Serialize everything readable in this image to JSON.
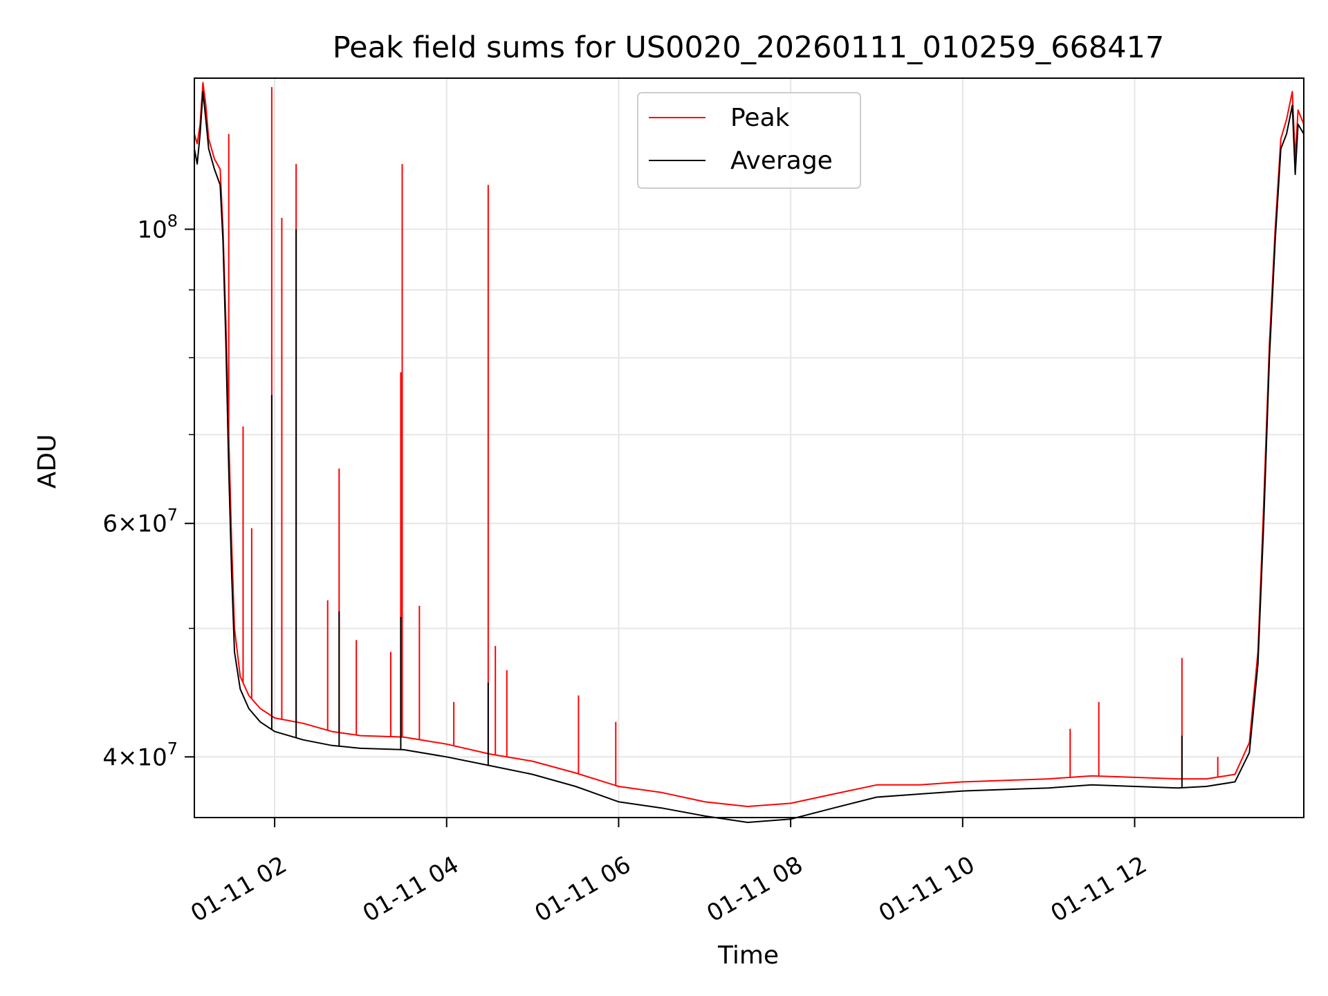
{
  "chart_data": {
    "type": "line",
    "title": "Peak field sums for US0020_20260111_010259_668417",
    "xlabel": "Time",
    "ylabel": "ADU",
    "yscale": "log",
    "grid": true,
    "legend_position": "top-center",
    "x_range": [
      "2026-01-11 01:04",
      "2026-01-11 13:58"
    ],
    "y_range": [
      36000000,
      130000000
    ],
    "x_ticks": [
      {
        "t": "2026-01-11 02:00",
        "label": "01-11 02"
      },
      {
        "t": "2026-01-11 04:00",
        "label": "01-11 04"
      },
      {
        "t": "2026-01-11 06:00",
        "label": "01-11 06"
      },
      {
        "t": "2026-01-11 08:00",
        "label": "01-11 08"
      },
      {
        "t": "2026-01-11 10:00",
        "label": "01-11 10"
      },
      {
        "t": "2026-01-11 12:00",
        "label": "01-11 12"
      }
    ],
    "y_major_ticks": [
      {
        "value": 40000000,
        "base": "4",
        "exp": "7",
        "times": true
      },
      {
        "value": 60000000,
        "base": "6",
        "exp": "7",
        "times": true
      },
      {
        "value": 100000000,
        "base": "10",
        "exp": "8",
        "times": false
      }
    ],
    "y_minor_ticks": [
      50000000,
      70000000,
      80000000,
      90000000
    ],
    "series": [
      {
        "name": "Peak",
        "color": "#ff0000",
        "points": [
          [
            "2026-01-11 01:04",
            118000000
          ],
          [
            "2026-01-11 01:06",
            116000000
          ],
          [
            "2026-01-11 01:08",
            120000000
          ],
          [
            "2026-01-11 01:10",
            129000000
          ],
          [
            "2026-01-11 01:12",
            124000000
          ],
          [
            "2026-01-11 01:14",
            117000000
          ],
          [
            "2026-01-11 01:18",
            113000000
          ],
          [
            "2026-01-11 01:22",
            111000000
          ],
          [
            "2026-01-11 01:24",
            100000000
          ],
          [
            "2026-01-11 01:26",
            85000000
          ],
          [
            "2026-01-11 01:28",
            70000000
          ],
          [
            "2026-01-11 01:30",
            58000000
          ],
          [
            "2026-01-11 01:32",
            50000000
          ],
          [
            "2026-01-11 01:36",
            46000000
          ],
          [
            "2026-01-11 01:42",
            44500000
          ],
          [
            "2026-01-11 01:50",
            43500000
          ],
          [
            "2026-01-11 02:00",
            42800000
          ],
          [
            "2026-01-11 02:20",
            42400000
          ],
          [
            "2026-01-11 02:40",
            41800000
          ],
          [
            "2026-01-11 03:00",
            41500000
          ],
          [
            "2026-01-11 03:30",
            41400000
          ],
          [
            "2026-01-11 04:00",
            40900000
          ],
          [
            "2026-01-11 04:30",
            40200000
          ],
          [
            "2026-01-11 05:00",
            39700000
          ],
          [
            "2026-01-11 05:30",
            38900000
          ],
          [
            "2026-01-11 06:00",
            38000000
          ],
          [
            "2026-01-11 06:30",
            37600000
          ],
          [
            "2026-01-11 07:00",
            37000000
          ],
          [
            "2026-01-11 07:30",
            36700000
          ],
          [
            "2026-01-11 08:00",
            36900000
          ],
          [
            "2026-01-11 08:30",
            37500000
          ],
          [
            "2026-01-11 09:00",
            38100000
          ],
          [
            "2026-01-11 09:30",
            38100000
          ],
          [
            "2026-01-11 10:00",
            38300000
          ],
          [
            "2026-01-11 10:30",
            38400000
          ],
          [
            "2026-01-11 11:00",
            38500000
          ],
          [
            "2026-01-11 11:30",
            38700000
          ],
          [
            "2026-01-11 12:00",
            38600000
          ],
          [
            "2026-01-11 12:30",
            38500000
          ],
          [
            "2026-01-11 12:50",
            38500000
          ],
          [
            "2026-01-11 13:10",
            38800000
          ],
          [
            "2026-01-11 13:20",
            41000000
          ],
          [
            "2026-01-11 13:26",
            48000000
          ],
          [
            "2026-01-11 13:30",
            62000000
          ],
          [
            "2026-01-11 13:34",
            82000000
          ],
          [
            "2026-01-11 13:38",
            100000000
          ],
          [
            "2026-01-11 13:42",
            117000000
          ],
          [
            "2026-01-11 13:46",
            121000000
          ],
          [
            "2026-01-11 13:50",
            127000000
          ],
          [
            "2026-01-11 13:52",
            113000000
          ],
          [
            "2026-01-11 13:54",
            123000000
          ],
          [
            "2026-01-11 13:58",
            120000000
          ]
        ],
        "spikes": [
          [
            "2026-01-11 01:28",
            118000000
          ],
          [
            "2026-01-11 01:38",
            71000000
          ],
          [
            "2026-01-11 01:44",
            59500000
          ],
          [
            "2026-01-11 01:58",
            128000000
          ],
          [
            "2026-01-11 02:05",
            102000000
          ],
          [
            "2026-01-11 02:15",
            112000000
          ],
          [
            "2026-01-11 02:37",
            52500000
          ],
          [
            "2026-01-11 02:45",
            66000000
          ],
          [
            "2026-01-11 02:57",
            49000000
          ],
          [
            "2026-01-11 03:21",
            48000000
          ],
          [
            "2026-01-11 03:28",
            78000000
          ],
          [
            "2026-01-11 03:29",
            112000000
          ],
          [
            "2026-01-11 03:41",
            52000000
          ],
          [
            "2026-01-11 04:05",
            44000000
          ],
          [
            "2026-01-11 04:29",
            108000000
          ],
          [
            "2026-01-11 04:34",
            48500000
          ],
          [
            "2026-01-11 04:42",
            46500000
          ],
          [
            "2026-01-11 05:32",
            44500000
          ],
          [
            "2026-01-11 05:58",
            42500000
          ],
          [
            "2026-01-11 11:15",
            42000000
          ],
          [
            "2026-01-11 11:35",
            44000000
          ],
          [
            "2026-01-11 12:33",
            47500000
          ],
          [
            "2026-01-11 12:58",
            40000000
          ]
        ]
      },
      {
        "name": "Average",
        "color": "#000000",
        "points": [
          [
            "2026-01-11 01:04",
            115000000
          ],
          [
            "2026-01-11 01:06",
            112000000
          ],
          [
            "2026-01-11 01:08",
            118000000
          ],
          [
            "2026-01-11 01:10",
            127000000
          ],
          [
            "2026-01-11 01:12",
            121000000
          ],
          [
            "2026-01-11 01:14",
            115000000
          ],
          [
            "2026-01-11 01:18",
            111000000
          ],
          [
            "2026-01-11 01:22",
            108000000
          ],
          [
            "2026-01-11 01:24",
            98000000
          ],
          [
            "2026-01-11 01:26",
            82000000
          ],
          [
            "2026-01-11 01:28",
            66000000
          ],
          [
            "2026-01-11 01:30",
            55000000
          ],
          [
            "2026-01-11 01:32",
            48000000
          ],
          [
            "2026-01-11 01:36",
            45000000
          ],
          [
            "2026-01-11 01:42",
            43500000
          ],
          [
            "2026-01-11 01:50",
            42500000
          ],
          [
            "2026-01-11 02:00",
            41800000
          ],
          [
            "2026-01-11 02:20",
            41200000
          ],
          [
            "2026-01-11 02:40",
            40800000
          ],
          [
            "2026-01-11 03:00",
            40600000
          ],
          [
            "2026-01-11 03:30",
            40500000
          ],
          [
            "2026-01-11 04:00",
            40000000
          ],
          [
            "2026-01-11 04:30",
            39400000
          ],
          [
            "2026-01-11 05:00",
            38800000
          ],
          [
            "2026-01-11 05:30",
            38000000
          ],
          [
            "2026-01-11 06:00",
            37000000
          ],
          [
            "2026-01-11 06:30",
            36600000
          ],
          [
            "2026-01-11 07:00",
            36100000
          ],
          [
            "2026-01-11 07:30",
            35700000
          ],
          [
            "2026-01-11 08:00",
            35900000
          ],
          [
            "2026-01-11 08:30",
            36600000
          ],
          [
            "2026-01-11 09:00",
            37300000
          ],
          [
            "2026-01-11 09:30",
            37500000
          ],
          [
            "2026-01-11 10:00",
            37700000
          ],
          [
            "2026-01-11 10:30",
            37800000
          ],
          [
            "2026-01-11 11:00",
            37900000
          ],
          [
            "2026-01-11 11:30",
            38100000
          ],
          [
            "2026-01-11 12:00",
            38000000
          ],
          [
            "2026-01-11 12:30",
            37900000
          ],
          [
            "2026-01-11 12:50",
            38000000
          ],
          [
            "2026-01-11 13:10",
            38300000
          ],
          [
            "2026-01-11 13:20",
            40300000
          ],
          [
            "2026-01-11 13:26",
            47000000
          ],
          [
            "2026-01-11 13:30",
            60000000
          ],
          [
            "2026-01-11 13:34",
            80000000
          ],
          [
            "2026-01-11 13:38",
            98000000
          ],
          [
            "2026-01-11 13:42",
            115000000
          ],
          [
            "2026-01-11 13:46",
            118000000
          ],
          [
            "2026-01-11 13:50",
            124000000
          ],
          [
            "2026-01-11 13:52",
            110000000
          ],
          [
            "2026-01-11 13:54",
            120000000
          ],
          [
            "2026-01-11 13:58",
            118000000
          ]
        ],
        "spikes": [
          [
            "2026-01-11 01:58",
            75000000
          ],
          [
            "2026-01-11 02:15",
            100000000
          ],
          [
            "2026-01-11 02:45",
            51500000
          ],
          [
            "2026-01-11 03:28",
            51000000
          ],
          [
            "2026-01-11 04:29",
            45500000
          ],
          [
            "2026-01-11 12:33",
            41500000
          ]
        ]
      }
    ]
  }
}
